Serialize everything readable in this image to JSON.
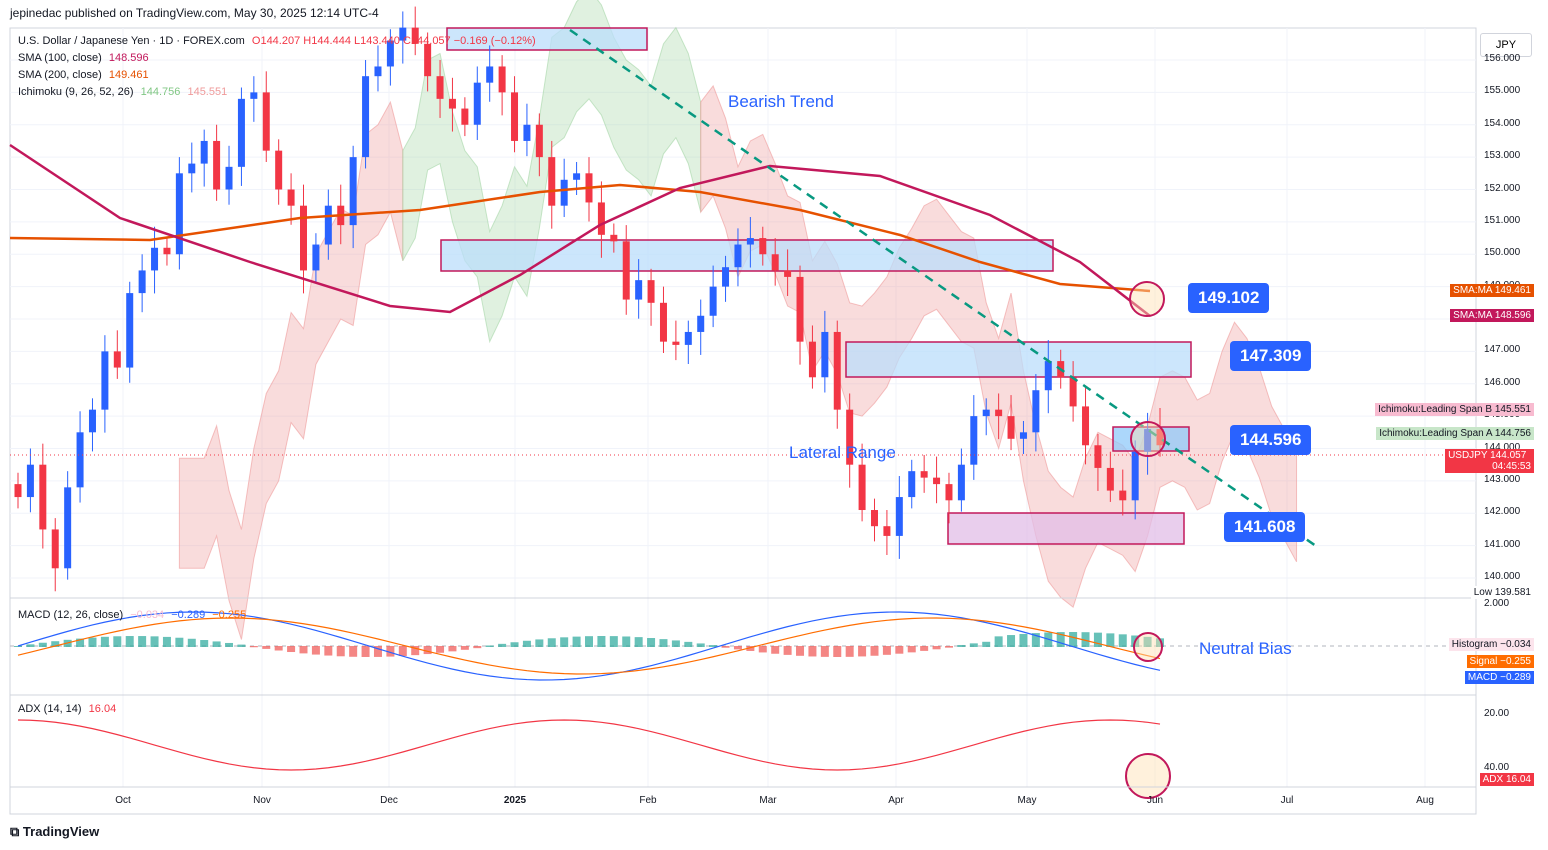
{
  "header": "jepinedac published on TradingView.com, May 30, 2025 12:14 UTC-4",
  "footer": "TradingView",
  "legend": {
    "symbol": "U.S. Dollar / Japanese Yen · 1D · FOREX.com",
    "ohlc": "O144.207 H144.444 L143.440 C144.057 −0.169 (−0.12%)",
    "sma100_label": "SMA (100, close)",
    "sma100_value": "148.596",
    "sma200_label": "SMA (200, close)",
    "sma200_value": "149.461",
    "ichimoku_label": "Ichimoku (9, 26, 52, 26)",
    "ichimoku_a": "144.756",
    "ichimoku_b": "145.551",
    "macd_label": "MACD (12, 26, close)",
    "macd_hist": "−0.034",
    "macd_line": "−0.289",
    "macd_signal": "−0.255",
    "adx_label": "ADX (14, 14)",
    "adx_value": "16.04"
  },
  "currency": "JPY",
  "annotations": {
    "bearish_trend": "Bearish Trend",
    "lateral_range": "Lateral Range",
    "neutral_bias": "Neutral Bias",
    "level_1": "149.102",
    "level_2": "147.309",
    "level_3": "144.596",
    "level_4": "141.608"
  },
  "axis_tags": {
    "sma200": "SMA:MA",
    "sma200_v": "149.461",
    "sma100": "SMA:MA",
    "sma100_v": "148.596",
    "span_b": "Ichimoku:Leading Span B",
    "span_b_v": "145.551",
    "span_a": "Ichimoku:Leading Span A",
    "span_a_v": "144.756",
    "last": "USDJPY",
    "last_v": "144.057",
    "countdown": "04:45:53",
    "low": "Low",
    "low_v": "139.581",
    "hist": "Histogram",
    "hist_v": "−0.034",
    "signal": "Signal",
    "signal_v": "−0.255",
    "macd": "MACD",
    "macd_v": "−0.289",
    "adx": "ADX",
    "adx_v": "16.04"
  },
  "colors": {
    "up": "#2962ff",
    "down": "#f23645",
    "sma100": "#c2185b",
    "sma200": "#e65100",
    "trend": "#089981",
    "cloud_bull": "#a5d6a7",
    "cloud_bear": "#ef9a9a",
    "annotation": "#2962ff"
  },
  "chart_data": {
    "type": "candlestick",
    "y_range": [
      139.5,
      157
    ],
    "y_ticks": [
      "156.000",
      "155.000",
      "154.000",
      "153.000",
      "152.000",
      "151.000",
      "150.000",
      "149.000",
      "148.000",
      "147.000",
      "146.000",
      "145.000",
      "144.000",
      "143.000",
      "142.000",
      "141.000",
      "140.000"
    ],
    "x_ticks": [
      "Oct",
      "Nov",
      "Dec",
      "2025",
      "Feb",
      "Mar",
      "Apr",
      "May",
      "Jun",
      "Jul",
      "Aug"
    ],
    "macd_ticks": [
      "2.000"
    ],
    "adx_ticks": [
      "40.00",
      "20.00"
    ],
    "close_path": [
      142.5,
      143.5,
      141.5,
      140.3,
      142.8,
      144.5,
      145.2,
      147.0,
      146.5,
      148.8,
      149.5,
      150.2,
      150.0,
      152.5,
      152.8,
      153.5,
      152.0,
      152.7,
      154.8,
      155.0,
      153.2,
      152.0,
      151.5,
      149.5,
      150.3,
      151.5,
      150.9,
      153.0,
      155.5,
      155.8,
      156.6,
      157.0,
      156.5,
      155.5,
      154.8,
      154.5,
      154.0,
      155.3,
      155.8,
      155.0,
      153.5,
      154.0,
      153.0,
      151.5,
      152.3,
      152.5,
      151.6,
      150.6,
      150.4,
      148.6,
      149.2,
      148.5,
      147.3,
      147.2,
      147.6,
      148.1,
      149.0,
      149.6,
      150.3,
      150.5,
      150.0,
      149.5,
      149.3,
      147.3,
      146.2,
      147.6,
      145.2,
      143.5,
      142.1,
      141.6,
      141.3,
      142.5,
      143.3,
      143.1,
      142.9,
      142.4,
      143.5,
      145.0,
      145.2,
      145.0,
      144.3,
      144.5,
      145.8,
      146.7,
      146.2,
      145.3,
      144.1,
      143.4,
      142.7,
      142.4,
      143.9,
      144.6,
      144.1
    ]
  }
}
